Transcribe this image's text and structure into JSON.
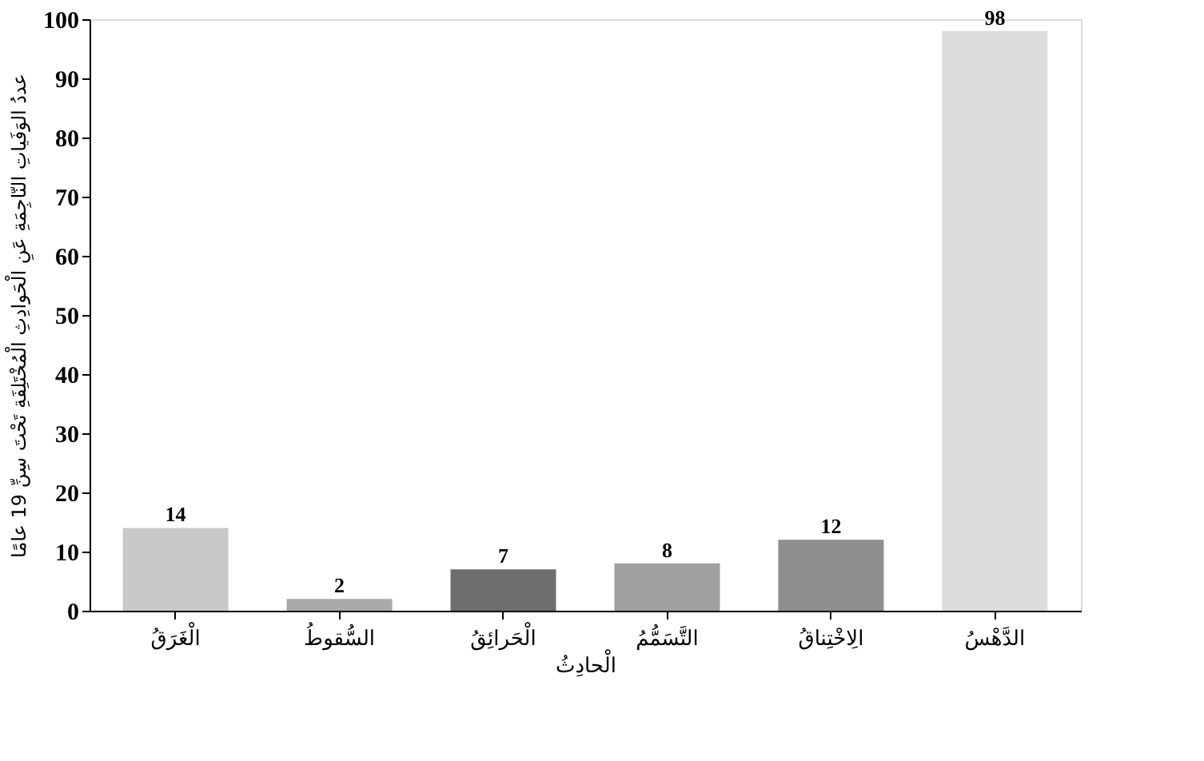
{
  "chart_data": {
    "type": "bar",
    "xlabel": "الْحادِثُ",
    "ylabel": "عددُ الوَفَياتِ النّاجِمَةِ عَنِ الْحَوادِثِ الْمُخْتَلِفَةِ تَحْتَ سِنِّ 19 عامًا",
    "categories": [
      "الْغَرَقُ",
      "السُّقوطُ",
      "الْحَرائِقُ",
      "التَّسَمُّمُ",
      "الِاخْتِناقُ",
      "الدَّهْسُ"
    ],
    "values": [
      14,
      2,
      7,
      8,
      12,
      98
    ],
    "colors": [
      "#c8c8c8",
      "#a9a9a9",
      "#6e6e6e",
      "#a0a0a0",
      "#8e8e8e",
      "#dcdcdc"
    ],
    "ylim": [
      0,
      100
    ],
    "yticks": [
      0,
      10,
      20,
      30,
      40,
      50,
      60,
      70,
      80,
      90,
      100
    ],
    "grid": false,
    "data_labels": true
  }
}
